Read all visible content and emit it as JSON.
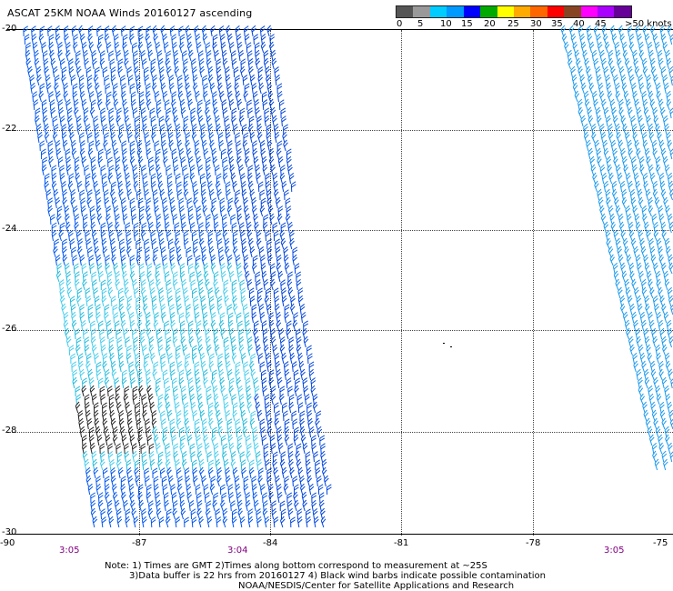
{
  "title": "ASCAT 25KM NOAA Winds 20160127 ascending",
  "colorbar": {
    "colors": [
      "#555555",
      "#999999",
      "#00ccff",
      "#0099ff",
      "#0000ff",
      "#00aa00",
      "#ffff00",
      "#ffaa00",
      "#ff6600",
      "#ff0000",
      "#884422",
      "#ff00ff",
      "#aa00ff",
      "#660099"
    ],
    "labels": [
      "0",
      "5",
      "10",
      "15",
      "20",
      "25",
      "30",
      "35",
      "40",
      "45",
      ">50 knots"
    ]
  },
  "axes": {
    "y_labels": [
      "-20",
      "-22",
      "-24",
      "-26",
      "-28",
      "-30"
    ],
    "x_labels": [
      "-90",
      "-87",
      "-84",
      "-81",
      "-78",
      "-75"
    ]
  },
  "times": [
    "3:05",
    "3:04",
    "3:05"
  ],
  "notes": {
    "line1": "Note: 1) Times are GMT 2)Times along bottom correspond to measurement at ~25S",
    "line2": "3)Data buffer is 22 hrs from 20160127 4) Black wind barbs indicate possible contamination",
    "line3": "NOAA/NESDIS/Center for Satellite Applications and Research"
  },
  "swaths": [
    {
      "name": "left-swath",
      "color": "#0066ee"
    },
    {
      "name": "right-swath",
      "color": "#1199ee"
    }
  ]
}
